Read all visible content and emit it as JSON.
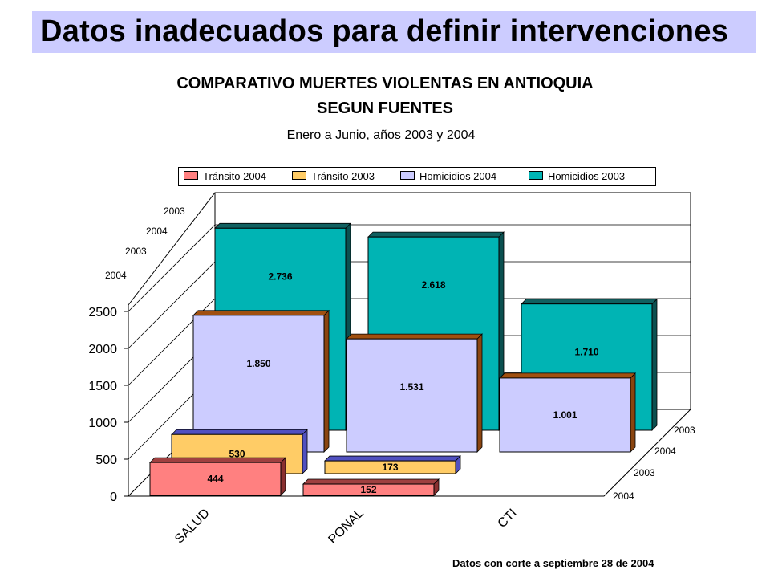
{
  "header": {
    "title": "Datos inadecuados para definir intervenciones"
  },
  "footnote": "Datos con corte a septiembre 28 de 2004",
  "colors": {
    "transito_2004": "#ff8080",
    "transito_2003": "#ffcc66",
    "homicidios_2004": "#ccccff",
    "homicidios_2003": "#00b4b4",
    "header_background": "#ccccff"
  },
  "chart_data": {
    "type": "bar",
    "title_line1": "COMPARATIVO MUERTES VIOLENTAS EN ANTIOQUIA",
    "title_line2": "SEGUN FUENTES",
    "subtitle": "Enero a Junio, años 2003 y 2004",
    "categories": [
      "SALUD",
      "PONAL",
      "CTI"
    ],
    "series": [
      {
        "name": "Tránsito 2004",
        "values": [
          444,
          152,
          null
        ],
        "labels": [
          "444",
          "152",
          ""
        ]
      },
      {
        "name": "Tránsito 2003",
        "values": [
          530,
          173,
          null
        ],
        "labels": [
          "530",
          "173",
          ""
        ]
      },
      {
        "name": "Homicidios 2004",
        "values": [
          1850,
          1531,
          1001
        ],
        "labels": [
          "1.850",
          "1.531",
          "1.001"
        ]
      },
      {
        "name": "Homicidios 2003",
        "values": [
          2736,
          2618,
          1710
        ],
        "labels": [
          "2.736",
          "2.618",
          "1.710"
        ]
      }
    ],
    "y_ticks": [
      "0",
      "500",
      "1000",
      "1500",
      "2000",
      "2500"
    ],
    "ylim": [
      0,
      2500
    ],
    "depth_labels": [
      "2004",
      "2003",
      "2004",
      "2003"
    ],
    "legend_position": "top",
    "grid": true
  }
}
